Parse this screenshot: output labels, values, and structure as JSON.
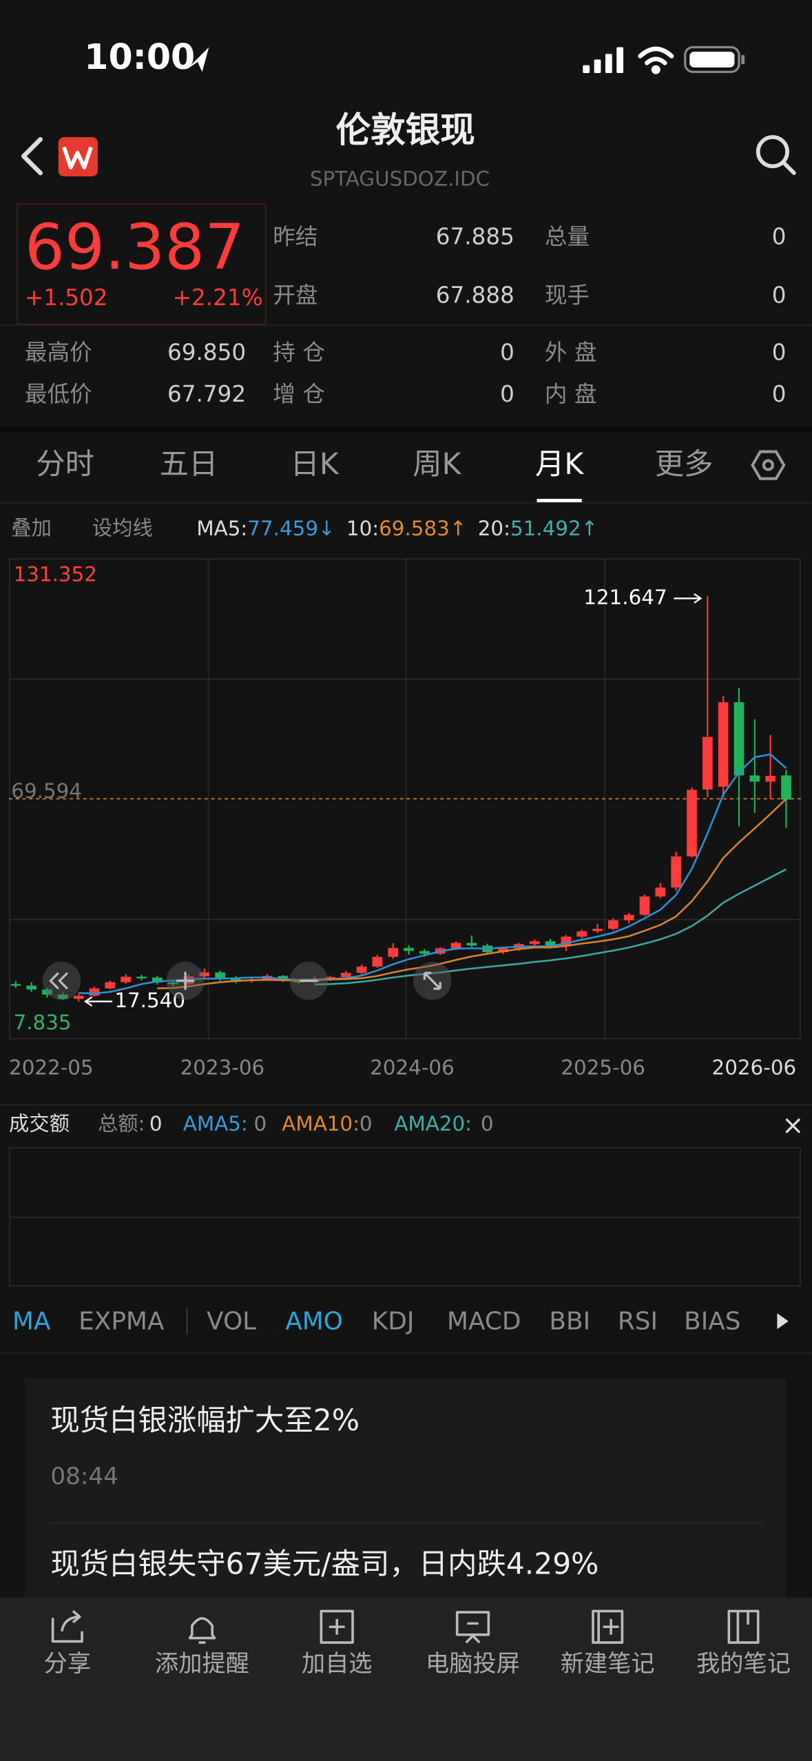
{
  "status_bar": {
    "time": "10:00"
  },
  "header": {
    "title": "伦敦银现",
    "code": "SPTAGUSDOZ.IDC"
  },
  "quote": {
    "price": "69.387",
    "change": "+1.502",
    "change_pct": "+2.21%",
    "stats": [
      {
        "label": "昨结",
        "value": "67.885"
      },
      {
        "label": "总量",
        "value": "0"
      },
      {
        "label": "开盘",
        "value": "67.888"
      },
      {
        "label": "现手",
        "value": "0"
      },
      {
        "label": "最高价",
        "value": "69.850"
      },
      {
        "label": "持 仓",
        "value": "0"
      },
      {
        "label": "外 盘",
        "value": "0"
      },
      {
        "label": "最低价",
        "value": "67.792"
      },
      {
        "label": "增 仓",
        "value": "0"
      },
      {
        "label": "内 盘",
        "value": "0"
      }
    ]
  },
  "tabs": {
    "items": [
      "分时",
      "五日",
      "日K",
      "周K",
      "月K",
      "更多"
    ],
    "active": 4
  },
  "ma_bar": {
    "overlay": "叠加",
    "set_ma": "设均线"
  },
  "kline": {
    "type": "candlestick",
    "ylim": [
      7.835,
      131.352
    ],
    "yticks": [
      7.835,
      69.594,
      131.352
    ],
    "ytick_colors": [
      "#2fb56a",
      "#777777",
      "#ff4040"
    ],
    "up_color": "#ff3b3b",
    "down_color": "#22b35a",
    "price_line_color": "#e08a2a",
    "x_labels": [
      "2022-05",
      "2023-06",
      "2024-06",
      "2025-06",
      "2026-06"
    ],
    "open": [
      22.0,
      21.6,
      20.6,
      19.3,
      18.2,
      19.0,
      20.9,
      22.5,
      23.9,
      23.7,
      22.4,
      22.0,
      24.0,
      25.0,
      23.5,
      22.8,
      23.2,
      24.1,
      22.9,
      22.6,
      23.1,
      23.8,
      24.9,
      26.5,
      29.0,
      31.3,
      30.5,
      29.8,
      31.2,
      32.6,
      31.9,
      30.2,
      31.2,
      32.3,
      33.0,
      31.8,
      34.2,
      35.6,
      36.2,
      38.4,
      39.8,
      44.5,
      46.8,
      54.8,
      72.0,
      72.7,
      94.4,
      75.6,
      74.0,
      75.6
    ],
    "close": [
      21.6,
      20.6,
      19.3,
      18.2,
      19.0,
      20.9,
      22.5,
      23.9,
      23.7,
      22.4,
      22.0,
      24.0,
      25.0,
      23.5,
      22.8,
      23.2,
      24.1,
      22.9,
      22.6,
      23.1,
      23.8,
      24.9,
      26.5,
      29.0,
      31.3,
      30.5,
      29.8,
      31.2,
      32.6,
      31.9,
      30.2,
      31.2,
      32.3,
      33.0,
      31.8,
      34.2,
      35.6,
      36.2,
      38.4,
      39.8,
      44.5,
      46.8,
      54.8,
      71.9,
      85.5,
      94.4,
      75.6,
      74.0,
      75.5,
      69.387
    ],
    "high": [
      22.8,
      22.5,
      21.0,
      19.8,
      19.5,
      21.3,
      22.9,
      24.5,
      24.4,
      24.1,
      22.8,
      24.5,
      26.0,
      25.5,
      24.0,
      23.8,
      24.6,
      24.3,
      23.3,
      23.9,
      24.2,
      25.4,
      27.0,
      29.5,
      32.5,
      32.0,
      31.0,
      31.5,
      33.0,
      34.5,
      32.4,
      31.5,
      32.6,
      33.5,
      33.6,
      34.6,
      36.0,
      37.5,
      38.9,
      40.3,
      45.0,
      48.0,
      56.0,
      72.5,
      121.647,
      96.0,
      98.0,
      90.0,
      86.0,
      77.0
    ],
    "low": [
      21.0,
      20.0,
      18.5,
      17.9,
      17.54,
      18.8,
      20.6,
      22.1,
      23.0,
      21.9,
      21.4,
      21.8,
      23.5,
      22.8,
      22.2,
      22.4,
      22.9,
      22.5,
      22.1,
      22.3,
      22.8,
      23.4,
      24.5,
      26.2,
      28.5,
      29.5,
      29.0,
      29.5,
      30.8,
      31.5,
      29.8,
      29.7,
      30.5,
      31.8,
      31.2,
      30.5,
      33.8,
      35.1,
      35.8,
      37.6,
      39.5,
      44.0,
      46.0,
      54.5,
      70.0,
      70.0,
      62.5,
      66.0,
      69.5,
      62.1
    ],
    "ma5": [
      null,
      null,
      null,
      null,
      19.7,
      19.6,
      20.0,
      20.9,
      22.0,
      22.7,
      22.9,
      23.2,
      23.4,
      23.4,
      23.5,
      23.7,
      23.7,
      23.3,
      23.1,
      23.2,
      23.3,
      23.5,
      24.2,
      25.5,
      27.1,
      28.4,
      29.4,
      30.4,
      31.1,
      31.2,
      31.1,
      31.4,
      31.6,
      31.7,
      31.7,
      32.5,
      33.4,
      34.2,
      35.2,
      36.8,
      38.9,
      41.1,
      44.9,
      51.6,
      60.7,
      70.7,
      76.4,
      80.3,
      81.0,
      77.459
    ],
    "ma10": [
      null,
      null,
      null,
      null,
      null,
      null,
      null,
      null,
      null,
      20.9,
      21.0,
      21.4,
      22.0,
      22.5,
      22.8,
      23.0,
      23.1,
      23.0,
      22.9,
      23.0,
      23.2,
      23.3,
      23.5,
      24.1,
      25.0,
      25.8,
      26.4,
      27.2,
      28.2,
      29.1,
      29.8,
      30.4,
      31.0,
      31.4,
      31.4,
      31.8,
      32.4,
      32.9,
      33.5,
      34.3,
      35.7,
      37.2,
      39.4,
      43.3,
      48.4,
      54.4,
      58.4,
      62.0,
      65.7,
      69.583
    ],
    "ma20": [
      null,
      null,
      null,
      null,
      null,
      null,
      null,
      null,
      null,
      null,
      null,
      null,
      null,
      null,
      null,
      null,
      null,
      null,
      null,
      21.9,
      22.0,
      22.2,
      22.6,
      23.1,
      23.7,
      24.2,
      24.6,
      25.0,
      25.5,
      26.0,
      26.4,
      26.8,
      27.2,
      27.7,
      28.1,
      28.6,
      29.2,
      29.9,
      30.6,
      31.4,
      32.4,
      33.5,
      34.9,
      36.9,
      39.6,
      42.9,
      45.2,
      47.3,
      49.4,
      51.492
    ],
    "ma_legend": [
      {
        "label": "MA5:",
        "trend": "↓",
        "color": "#3a9ad9",
        "line": "#2d8fd5"
      },
      {
        "label": "10:",
        "trend": "↑",
        "color": "#e08a2a",
        "line": "#d9822b"
      },
      {
        "label": "20:",
        "trend": "↑",
        "color": "#3fb0a8",
        "line": "#3aa89f"
      }
    ],
    "min_marker": {
      "value": 17.54,
      "label": "17.540"
    }
  },
  "volume": {
    "title": "成交额",
    "items": [
      {
        "label": "总额:",
        "value": 0,
        "color": "#888888"
      },
      {
        "label": "AMA5:",
        "value": 0,
        "color": "#3a9ad9"
      },
      {
        "label": "AMA10:",
        "value": 0,
        "color": "#e08a2a"
      },
      {
        "label": "AMA20:",
        "value": 0,
        "color": "#3fb0a8"
      }
    ]
  },
  "indicators": {
    "items": [
      "MA",
      "EXPMA",
      "VOL",
      "AMO",
      "KDJ",
      "MACD",
      "BBI",
      "RSI",
      "BIAS"
    ],
    "active": [
      0,
      3
    ]
  },
  "news": [
    {
      "title": "现货白银涨幅扩大至2%",
      "time": "08:44"
    },
    {
      "title": "现货白银失守67美元/盎司，日内跌4.29%"
    }
  ],
  "toolbar": [
    "分享",
    "添加提醒",
    "加自选",
    "电脑投屏",
    "新建笔记",
    "我的笔记"
  ]
}
